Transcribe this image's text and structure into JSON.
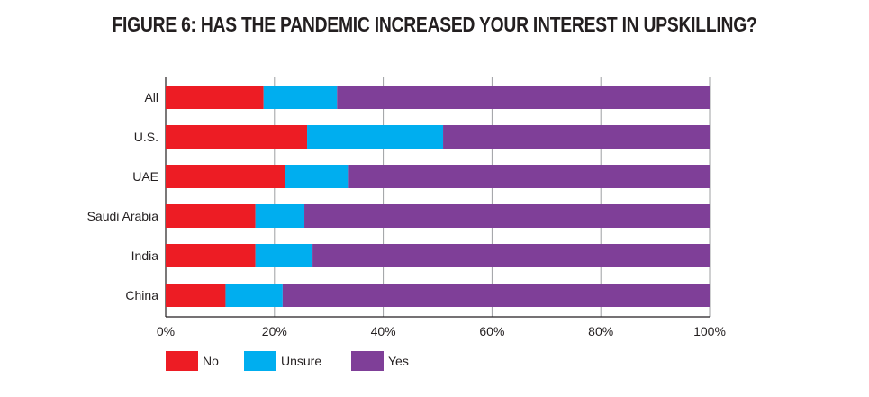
{
  "chart_data": {
    "type": "bar",
    "orientation": "horizontal",
    "stacked": true,
    "title": "FIGURE 6: HAS THE PANDEMIC INCREASED YOUR INTEREST IN UPSKILLING?",
    "categories": [
      "All",
      "U.S.",
      "UAE",
      "Saudi Arabia",
      "India",
      "China"
    ],
    "series": [
      {
        "name": "No",
        "color": "#ed1c24",
        "values": [
          18,
          26,
          22,
          16.5,
          16.5,
          11
        ]
      },
      {
        "name": "Unsure",
        "color": "#00aeef",
        "values": [
          13.5,
          25,
          11.5,
          9,
          10.5,
          10.5
        ]
      },
      {
        "name": "Yes",
        "color": "#7f3f98",
        "values": [
          68.5,
          49,
          66.5,
          74.5,
          73,
          78.5
        ]
      }
    ],
    "xlim": [
      0,
      100
    ],
    "x_ticks": [
      "0%",
      "20%",
      "40%",
      "60%",
      "80%",
      "100%"
    ],
    "grid": "vertical",
    "legend_position": "bottom-left"
  }
}
